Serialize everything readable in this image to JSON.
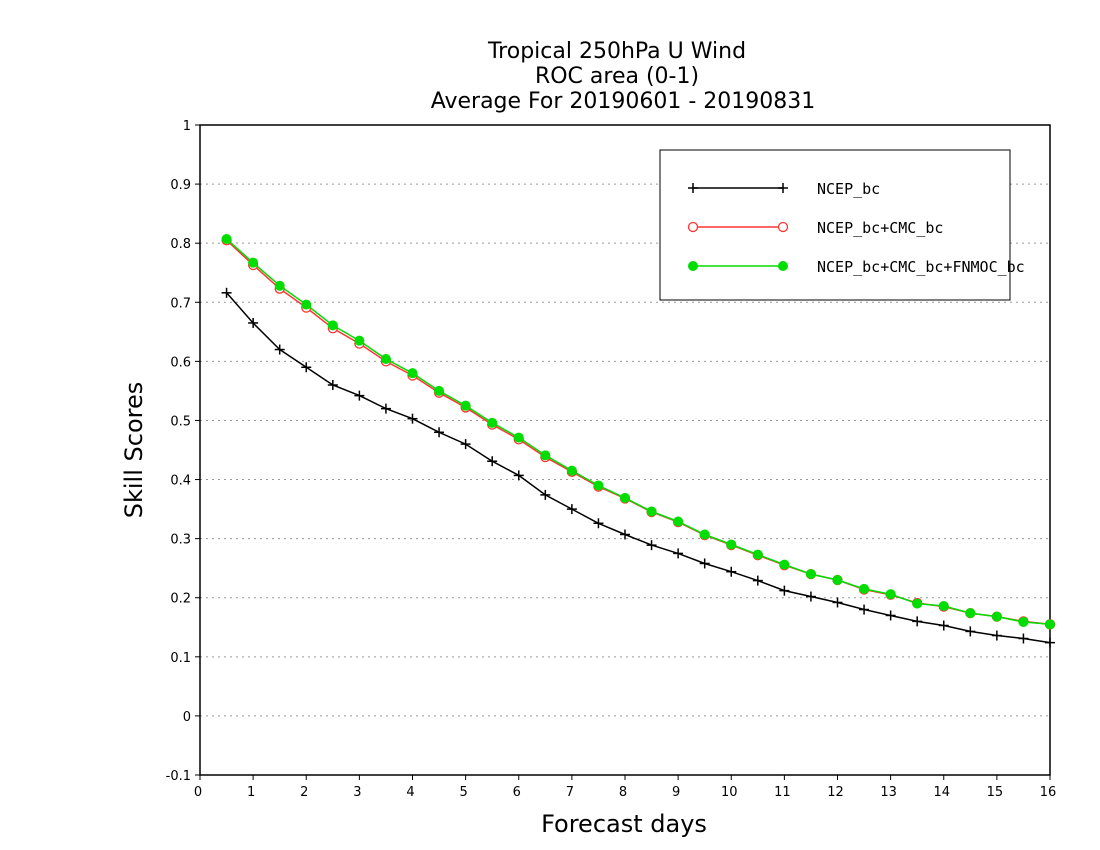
{
  "chart_data": {
    "type": "line",
    "title_lines": [
      "Tropical 250hPa U Wind",
      "ROC area (0-1)",
      "Average For 20190601 - 20190831"
    ],
    "xlabel": "Forecast days",
    "ylabel": "Skill Scores",
    "xlim": [
      0,
      16
    ],
    "ylim": [
      -0.1,
      1
    ],
    "xticks": [
      "0",
      "1",
      "2",
      "3",
      "4",
      "5",
      "6",
      "7",
      "8",
      "9",
      "10",
      "11",
      "12",
      "13",
      "14",
      "15",
      "16"
    ],
    "yticks": [
      "-0.1",
      "0",
      "0.1",
      "0.2",
      "0.3",
      "0.4",
      "0.5",
      "0.6",
      "0.7",
      "0.8",
      "0.9",
      "1"
    ],
    "grid": "horizontal dotted",
    "legend_placement": "top-right",
    "x": [
      0.5,
      1,
      1.5,
      2,
      2.5,
      3,
      3.5,
      4,
      4.5,
      5,
      5.5,
      6,
      6.5,
      7,
      7.5,
      8,
      8.5,
      9,
      9.5,
      10,
      10.5,
      11,
      11.5,
      12,
      12.5,
      13,
      13.5,
      14,
      14.5,
      15,
      15.5,
      16
    ],
    "series": [
      {
        "name": "NCEP_bc",
        "color": "#000000",
        "marker": "plus",
        "values": [
          0.716,
          0.665,
          0.62,
          0.59,
          0.56,
          0.542,
          0.52,
          0.503,
          0.48,
          0.46,
          0.431,
          0.407,
          0.374,
          0.35,
          0.326,
          0.307,
          0.289,
          0.275,
          0.258,
          0.244,
          0.229,
          0.212,
          0.202,
          0.192,
          0.18,
          0.17,
          0.16,
          0.153,
          0.143,
          0.136,
          0.131,
          0.124
        ]
      },
      {
        "name": "NCEP_bc+CMC_bc",
        "color": "#ff3333",
        "marker": "open-circle",
        "values": [
          0.805,
          0.763,
          0.723,
          0.691,
          0.656,
          0.63,
          0.6,
          0.576,
          0.547,
          0.522,
          0.493,
          0.468,
          0.438,
          0.413,
          0.388,
          0.368,
          0.345,
          0.328,
          0.306,
          0.289,
          0.272,
          0.255,
          0.24,
          0.23,
          0.214,
          0.205,
          0.191,
          0.185,
          0.174,
          0.168,
          0.16,
          0.155
        ]
      },
      {
        "name": "NCEP_bc+CMC_bc+FNMOC_bc",
        "color": "#00dd00",
        "marker": "filled-circle",
        "values": [
          0.807,
          0.767,
          0.728,
          0.696,
          0.661,
          0.635,
          0.604,
          0.58,
          0.55,
          0.525,
          0.496,
          0.471,
          0.441,
          0.415,
          0.39,
          0.369,
          0.346,
          0.329,
          0.307,
          0.29,
          0.273,
          0.256,
          0.24,
          0.23,
          0.215,
          0.206,
          0.19,
          0.186,
          0.174,
          0.168,
          0.159,
          0.155
        ]
      }
    ]
  }
}
